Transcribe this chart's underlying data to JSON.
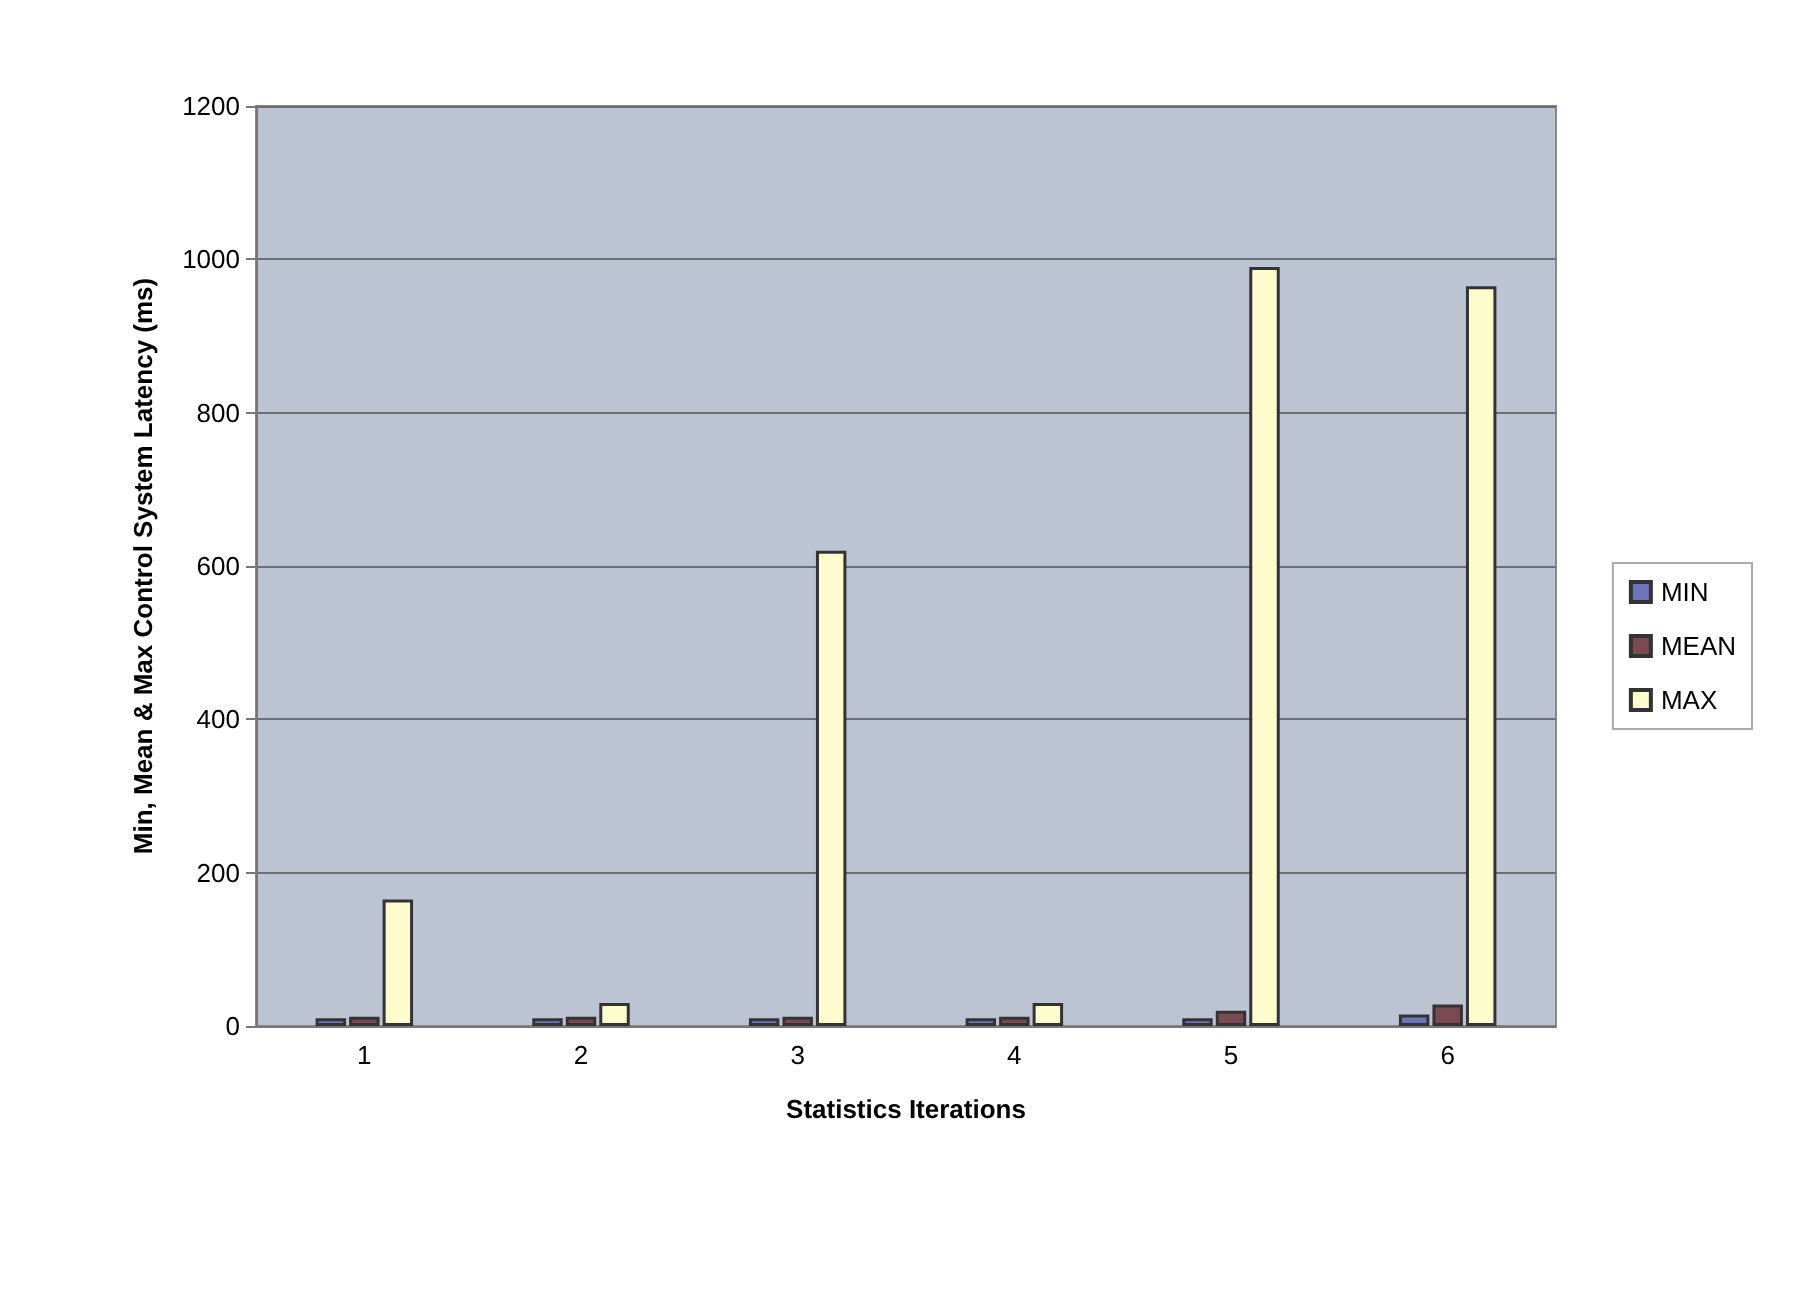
{
  "chart_data": {
    "type": "bar",
    "xlabel": "Statistics Iterations",
    "ylabel": "Min, Mean & Max Control System Latency (ms)",
    "categories": [
      "1",
      "2",
      "3",
      "4",
      "5",
      "6"
    ],
    "series": [
      {
        "name": "MIN",
        "color": "#6f74b8",
        "values": [
          10,
          10,
          10,
          10,
          10,
          15
        ]
      },
      {
        "name": "MEAN",
        "color": "#7a4a52",
        "values": [
          12,
          12,
          12,
          12,
          20,
          28
        ]
      },
      {
        "name": "MAX",
        "color": "#fdfccd",
        "values": [
          165,
          30,
          620,
          30,
          990,
          965
        ]
      }
    ],
    "ylim": [
      0,
      1200
    ],
    "yticks": [
      0,
      200,
      400,
      600,
      800,
      1000,
      1200
    ],
    "grid": "y",
    "legend": "right"
  }
}
